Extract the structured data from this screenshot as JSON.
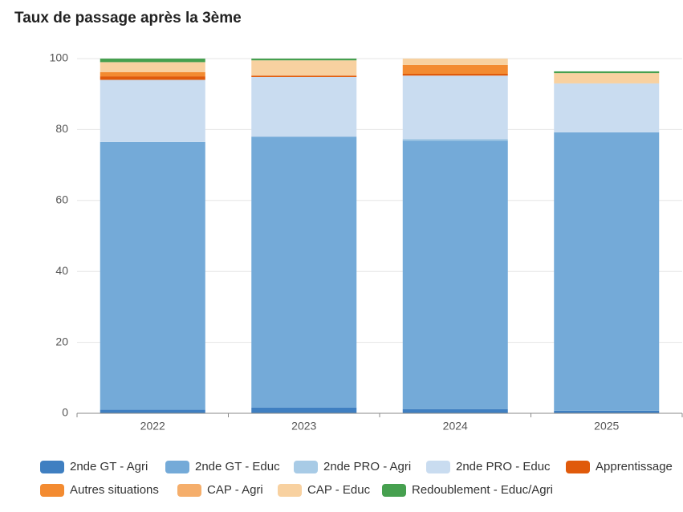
{
  "chart_data": {
    "type": "stacked_bar",
    "title": "Taux de passage après la 3ème",
    "categories": [
      "2022",
      "2023",
      "2024",
      "2025"
    ],
    "ylim": [
      0,
      100
    ],
    "yticks": [
      0,
      20,
      40,
      60,
      80,
      100
    ],
    "grid": true,
    "series": [
      {
        "name": "2nde GT - Agri",
        "color": "#3f7fc1",
        "values": [
          1,
          1.6,
          1.2,
          0.7
        ]
      },
      {
        "name": "2nde GT - Educ",
        "color": "#74aad8",
        "values": [
          75.5,
          76.4,
          75.7,
          78.5
        ]
      },
      {
        "name": "2nde PRO - Agri",
        "color": "#a8cbe6",
        "values": [
          0,
          0,
          0.5,
          0
        ]
      },
      {
        "name": "2nde PRO - Educ",
        "color": "#c9dcf0",
        "values": [
          17.5,
          16.8,
          17.8,
          13.8
        ]
      },
      {
        "name": "Apprentissage",
        "color": "#e05a0b",
        "values": [
          1,
          0.4,
          0.5,
          0
        ]
      },
      {
        "name": "Autres situations",
        "color": "#f38b31",
        "values": [
          1.2,
          0,
          2.5,
          0
        ]
      },
      {
        "name": "CAP - Agri",
        "color": "#f5ae6b",
        "values": [
          0,
          0,
          0,
          0
        ]
      },
      {
        "name": "CAP - Educ",
        "color": "#f8d1a0",
        "values": [
          2.8,
          4.3,
          1.8,
          2.9
        ]
      },
      {
        "name": "Redoublement - Educ/Agri",
        "color": "#46a04f",
        "values": [
          1,
          0.5,
          0,
          0.5
        ]
      }
    ]
  }
}
